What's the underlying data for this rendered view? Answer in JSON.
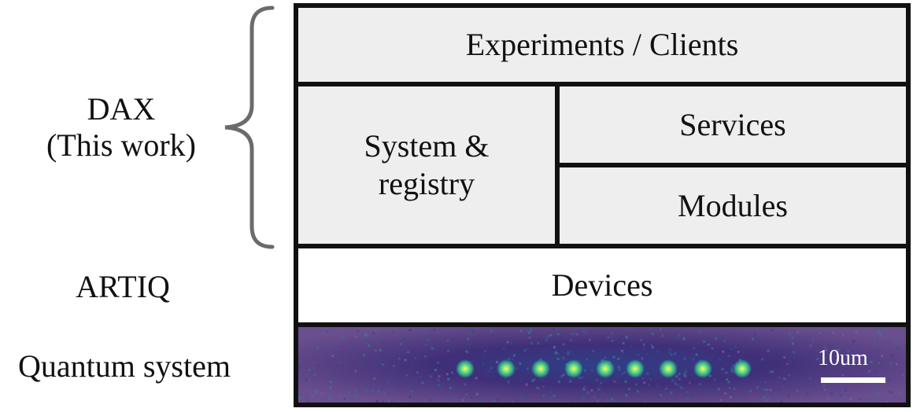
{
  "labels": {
    "dax_line1": "DAX",
    "dax_line2": "(This work)",
    "artiq": "ARTIQ",
    "quantum": "Quantum system"
  },
  "boxes": {
    "experiments": "Experiments / Clients",
    "system_line1": "System &",
    "system_line2": "registry",
    "services": "Services",
    "modules": "Modules",
    "devices": "Devices"
  },
  "image": {
    "scalebar_text": "10um",
    "ion_count": 9
  },
  "colors": {
    "layer_fill": "#eeeeee",
    "frame": "#111111",
    "brace": "#6b6b6b",
    "image_bg": "#5a3d7a",
    "ion": "#9ef060"
  }
}
